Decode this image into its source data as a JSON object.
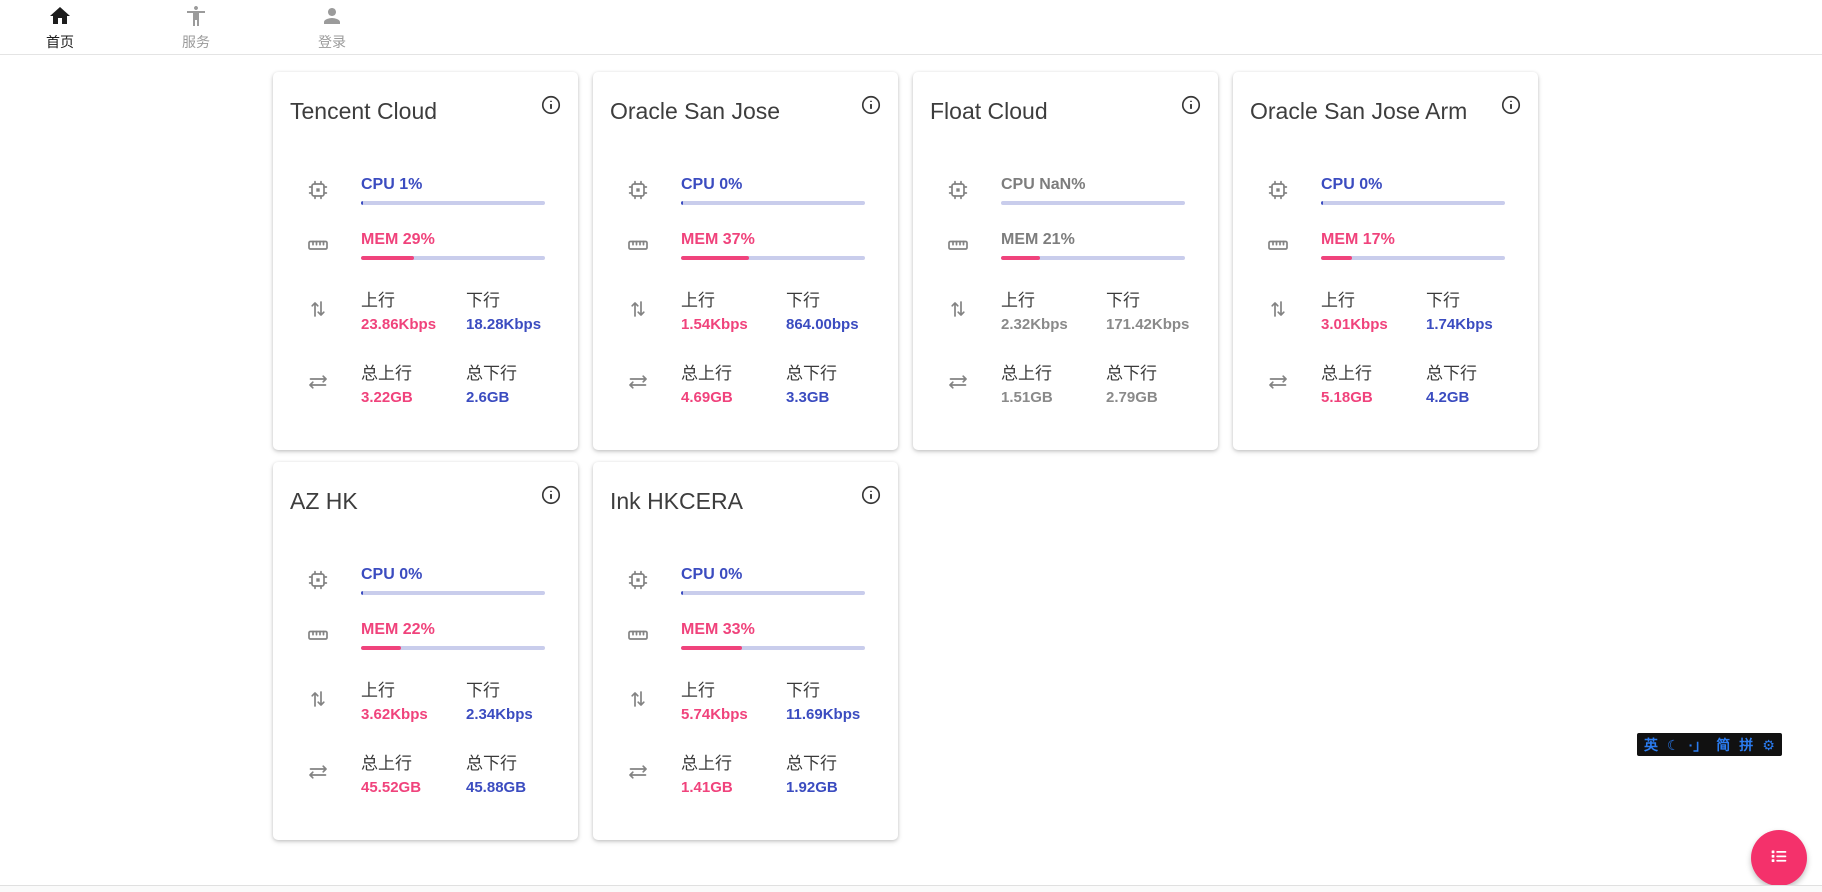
{
  "navbar": {
    "home": {
      "label": "首页"
    },
    "services": {
      "label": "服务"
    },
    "login": {
      "label": "登录"
    }
  },
  "stat_labels": {
    "upload": "上行",
    "download": "下行",
    "total_upload": "总上行",
    "total_download": "总下行"
  },
  "cards": [
    {
      "title": "Tencent Cloud",
      "cpu_text": "CPU 1%",
      "cpu_pct": 1,
      "mem_text": "MEM 29%",
      "mem_pct": 29,
      "upload": "23.86Kbps",
      "download": "18.28Kbps",
      "total_upload": "3.22GB",
      "total_download": "2.6GB",
      "offline": false
    },
    {
      "title": "Oracle San Jose",
      "cpu_text": "CPU 0%",
      "cpu_pct": 0,
      "mem_text": "MEM 37%",
      "mem_pct": 37,
      "upload": "1.54Kbps",
      "download": "864.00bps",
      "total_upload": "4.69GB",
      "total_download": "3.3GB",
      "offline": false
    },
    {
      "title": "Float Cloud",
      "cpu_text": "CPU NaN%",
      "cpu_pct": null,
      "mem_text": "MEM 21%",
      "mem_pct": 21,
      "upload": "2.32Kbps",
      "download": "171.42Kbps",
      "total_upload": "1.51GB",
      "total_download": "2.79GB",
      "offline": true
    },
    {
      "title": "Oracle San Jose Arm",
      "cpu_text": "CPU 0%",
      "cpu_pct": 0,
      "mem_text": "MEM 17%",
      "mem_pct": 17,
      "upload": "3.01Kbps",
      "download": "1.74Kbps",
      "total_upload": "5.18GB",
      "total_download": "4.2GB",
      "offline": false
    },
    {
      "title": "AZ HK",
      "cpu_text": "CPU 0%",
      "cpu_pct": 0,
      "mem_text": "MEM 22%",
      "mem_pct": 22,
      "upload": "3.62Kbps",
      "download": "2.34Kbps",
      "total_upload": "45.52GB",
      "total_download": "45.88GB",
      "offline": false
    },
    {
      "title": "Ink HKCERA",
      "cpu_text": "CPU 0%",
      "cpu_pct": 0,
      "mem_text": "MEM 33%",
      "mem_pct": 33,
      "upload": "5.74Kbps",
      "download": "11.69Kbps",
      "total_upload": "1.41GB",
      "total_download": "1.92GB",
      "offline": false
    }
  ],
  "ime_toolbar": {
    "english": "英",
    "moon_glyph": "☾",
    "punctuation_glyph": "·」",
    "simplified": "简",
    "pinyin": "拼",
    "gear_glyph": "⚙"
  },
  "icons": {
    "cpu_row": "chip-icon",
    "mem_row": "ruler-icon",
    "net_row": "up-down-arrows-icon",
    "total_row": "swap-horizontal-icon",
    "card_corner": "info-icon",
    "fab": "list-icon"
  },
  "colors": {
    "indigo": "#3b4cc0",
    "pink": "#f0437c",
    "bar_track": "#c9cdec",
    "offline_gray": "#8a8a8a",
    "fab_pink": "#f4316b",
    "ime_blue": "#2b7cf0"
  }
}
